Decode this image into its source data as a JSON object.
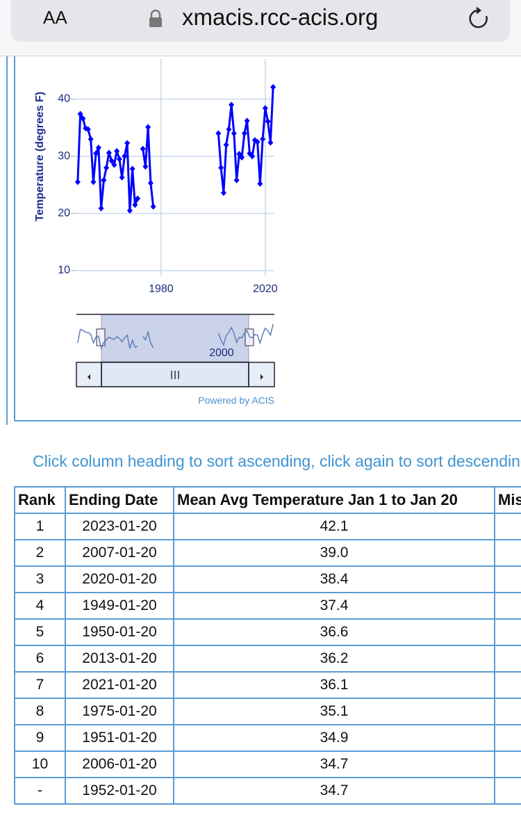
{
  "browser": {
    "text_size": "AA",
    "url": "xmacis.rcc-acis.org"
  },
  "chart_data": {
    "type": "line",
    "y_label": "Temperature (degrees F)",
    "x": [
      1948,
      1949,
      1950,
      1951,
      1952,
      1953,
      1954,
      1955,
      1956,
      1957,
      1958,
      1959,
      1960,
      1961,
      1962,
      1963,
      1964,
      1965,
      1966,
      1967,
      1968,
      1969,
      1970,
      1971,
      1972,
      1973,
      1974,
      1975,
      1976,
      1977,
      1978,
      2002,
      2003,
      2004,
      2005,
      2006,
      2007,
      2008,
      2009,
      2010,
      2011,
      2012,
      2013,
      2014,
      2015,
      2016,
      2017,
      2018,
      2019,
      2020,
      2021,
      2022,
      2023
    ],
    "series": [
      {
        "color": "#0000ff",
        "values": [
          25.5,
          37.4,
          36.6,
          34.9,
          34.7,
          33.0,
          25.5,
          30.5,
          31.5,
          20.9,
          25.8,
          28.0,
          30.6,
          29.2,
          28.5,
          30.9,
          29.5,
          26.3,
          30.0,
          32.3,
          20.5,
          27.8,
          21.5,
          22.6,
          null,
          31.3,
          28.2,
          35.1,
          25.3,
          21.2,
          null,
          34.0,
          28.0,
          23.6,
          32.0,
          34.7,
          39.0,
          34.0,
          25.8,
          30.4,
          29.8,
          34.0,
          36.2,
          30.5,
          30.0,
          32.8,
          32.5,
          25.2,
          33.0,
          38.4,
          36.1,
          32.4,
          42.1
        ]
      }
    ],
    "xlim": [
      1947.5,
      2023.5
    ],
    "xticks": [
      1980,
      2020
    ],
    "ylim": [
      10,
      47
    ],
    "yticks": [
      10,
      20,
      30,
      40
    ],
    "grid": true,
    "navigator_xticks": [
      2000
    ],
    "credit": "Powered by ACIS"
  },
  "note": "Click column heading to sort ascending, click again to sort descending",
  "table": {
    "header": [
      "Rank",
      "Ending Date",
      "Mean Avg Temperature Jan 1 to Jan 20",
      "Missing Count"
    ],
    "rows": [
      [
        "1",
        "2023-01-20",
        "42.1"
      ],
      [
        "2",
        "2007-01-20",
        "39.0"
      ],
      [
        "3",
        "2020-01-20",
        "38.4"
      ],
      [
        "4",
        "1949-01-20",
        "37.4"
      ],
      [
        "5",
        "1950-01-20",
        "36.6"
      ],
      [
        "6",
        "2013-01-20",
        "36.2"
      ],
      [
        "7",
        "2021-01-20",
        "36.1"
      ],
      [
        "8",
        "1975-01-20",
        "35.1"
      ],
      [
        "9",
        "1951-01-20",
        "34.9"
      ],
      [
        "10",
        "2006-01-20",
        "34.7"
      ],
      [
        "-",
        "1952-01-20",
        "34.7"
      ]
    ]
  }
}
